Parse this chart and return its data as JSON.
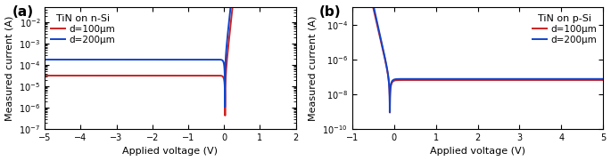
{
  "panel_a": {
    "title": "TiN on n-Si",
    "xlabel": "Applied voltage (V)",
    "ylabel": "Measured current (A)",
    "xlim": [
      -5.0,
      2.0
    ],
    "ylim": [
      1e-07,
      0.05
    ],
    "xticks": [
      -5,
      -4,
      -3,
      -2,
      -1,
      0,
      1,
      2
    ],
    "label": "(a)",
    "curves": [
      {
        "label": "d=100μm",
        "color": "#cc2222",
        "Is": 1.2e-05,
        "n": 1.08,
        "Ileak": 2e-05
      },
      {
        "label": "d=200μm",
        "color": "#1144cc",
        "Is": 8e-05,
        "n": 1.08,
        "Ileak": 0.0001
      }
    ]
  },
  "panel_b": {
    "title": "TiN on p-Si",
    "xlabel": "Applied voltage (V)",
    "ylabel": "Measured current (A)",
    "xlim": [
      -1.0,
      5.0
    ],
    "ylim": [
      1e-10,
      0.001
    ],
    "xticks": [
      -1,
      0,
      1,
      2,
      3,
      4,
      5
    ],
    "label": "(b)",
    "curves": [
      {
        "label": "d=100μm",
        "color": "#cc2222",
        "Is": 6e-09,
        "n": 1.6,
        "Ileak": 6e-08
      },
      {
        "label": "d=200μm",
        "color": "#1144cc",
        "Is": 6e-09,
        "n": 1.55,
        "Ileak": 7e-08
      }
    ]
  },
  "background_color": "#ffffff",
  "tick_fontsize": 7,
  "label_fontsize": 8,
  "title_fontsize": 8,
  "legend_fontsize": 7.5,
  "linewidth": 1.4
}
